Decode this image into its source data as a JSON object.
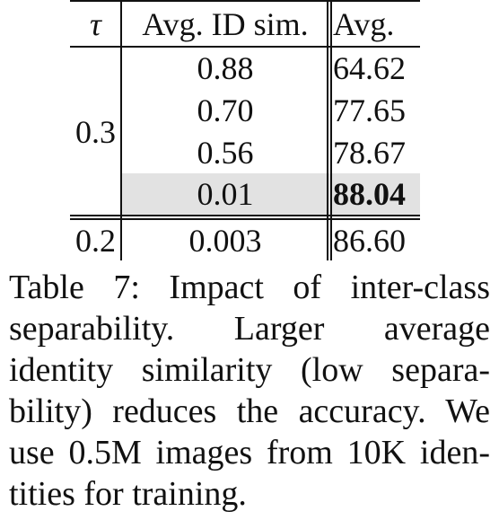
{
  "table": {
    "header": [
      "τ",
      "Avg. ID sim.",
      "Avg."
    ],
    "groups": [
      {
        "tau": "0.3",
        "rows": [
          [
            "0.88",
            "64.62"
          ],
          [
            "0.70",
            "77.65"
          ],
          [
            "0.56",
            "78.67"
          ],
          [
            "0.01",
            "88.04"
          ]
        ]
      },
      {
        "tau": "0.2",
        "rows": [
          [
            "0.003",
            "86.60"
          ]
        ]
      }
    ]
  },
  "caption": {
    "lines": [
      "Table 7:  Impact of inter-class",
      "separability.   Larger average",
      "identity similarity (low separa-",
      "bility) reduces the accuracy. We",
      "use 0.5M images from 10K iden-",
      "tities for training."
    ]
  }
}
